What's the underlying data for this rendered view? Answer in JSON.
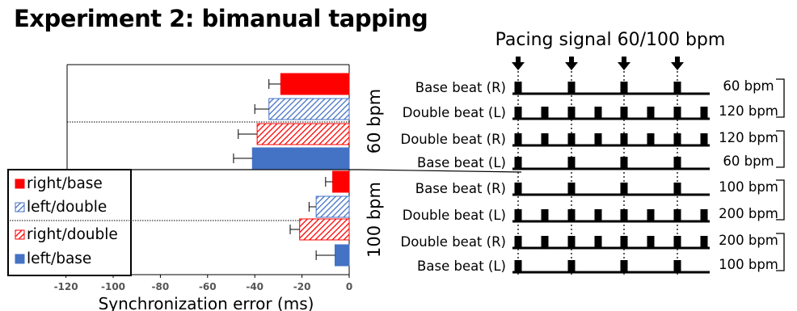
{
  "title": "Experiment 2: bimanual tapping",
  "colors": {
    "red": "#ff0000",
    "blue": "#4472c4",
    "hatch_blue": "#4472c4",
    "hatch_red": "#ff0000",
    "black": "#000000"
  },
  "chart_data": [
    {
      "type": "bar",
      "orientation": "horizontal",
      "xlabel": "Synchronization error (ms)",
      "xlim": [
        -130,
        0
      ],
      "xticks": [
        -120,
        -100,
        -80,
        -60,
        -40,
        -20,
        0
      ],
      "grid": false,
      "legend_position": "bottom-left",
      "legend": [
        {
          "name": "right/base",
          "style": "solid-red"
        },
        {
          "name": "left/double",
          "style": "hatch-blue"
        },
        {
          "name": "right/double",
          "style": "hatch-red"
        },
        {
          "name": "left/base",
          "style": "solid-blue"
        }
      ],
      "groups": [
        {
          "label": "60 bpm",
          "bars": [
            {
              "series": "right/base",
              "value": -29,
              "error": 5
            },
            {
              "series": "left/double",
              "value": -34,
              "error": 6
            },
            {
              "series": "right/double",
              "value": -39,
              "error": 8
            },
            {
              "series": "left/base",
              "value": -41,
              "error": 8
            }
          ]
        },
        {
          "label": "100 bpm",
          "bars": [
            {
              "series": "right/base",
              "value": -7,
              "error": 3
            },
            {
              "series": "left/double",
              "value": -14,
              "error": 3
            },
            {
              "series": "right/double",
              "value": -21,
              "error": 4
            },
            {
              "series": "left/base",
              "value": -6,
              "error": 8
            }
          ]
        }
      ]
    }
  ],
  "diagram": {
    "title": "Pacing signal 60/100 bpm",
    "rows": [
      {
        "label": "Base beat (R)",
        "rate": "60 bpm",
        "pulses": "base"
      },
      {
        "label": "Double beat (L)",
        "rate": "120 bpm",
        "pulses": "double"
      },
      {
        "label": "Double beat (R)",
        "rate": "120 bpm",
        "pulses": "double"
      },
      {
        "label": "Base beat (L)",
        "rate": "60 bpm",
        "pulses": "base"
      },
      {
        "label": "Base beat (R)",
        "rate": "100 bpm",
        "pulses": "base"
      },
      {
        "label": "Double beat (L)",
        "rate": "200 bpm",
        "pulses": "double"
      },
      {
        "label": "Double beat (R)",
        "rate": "200 bpm",
        "pulses": "double"
      },
      {
        "label": "Base beat (L)",
        "rate": "100 bpm",
        "pulses": "base"
      }
    ]
  }
}
